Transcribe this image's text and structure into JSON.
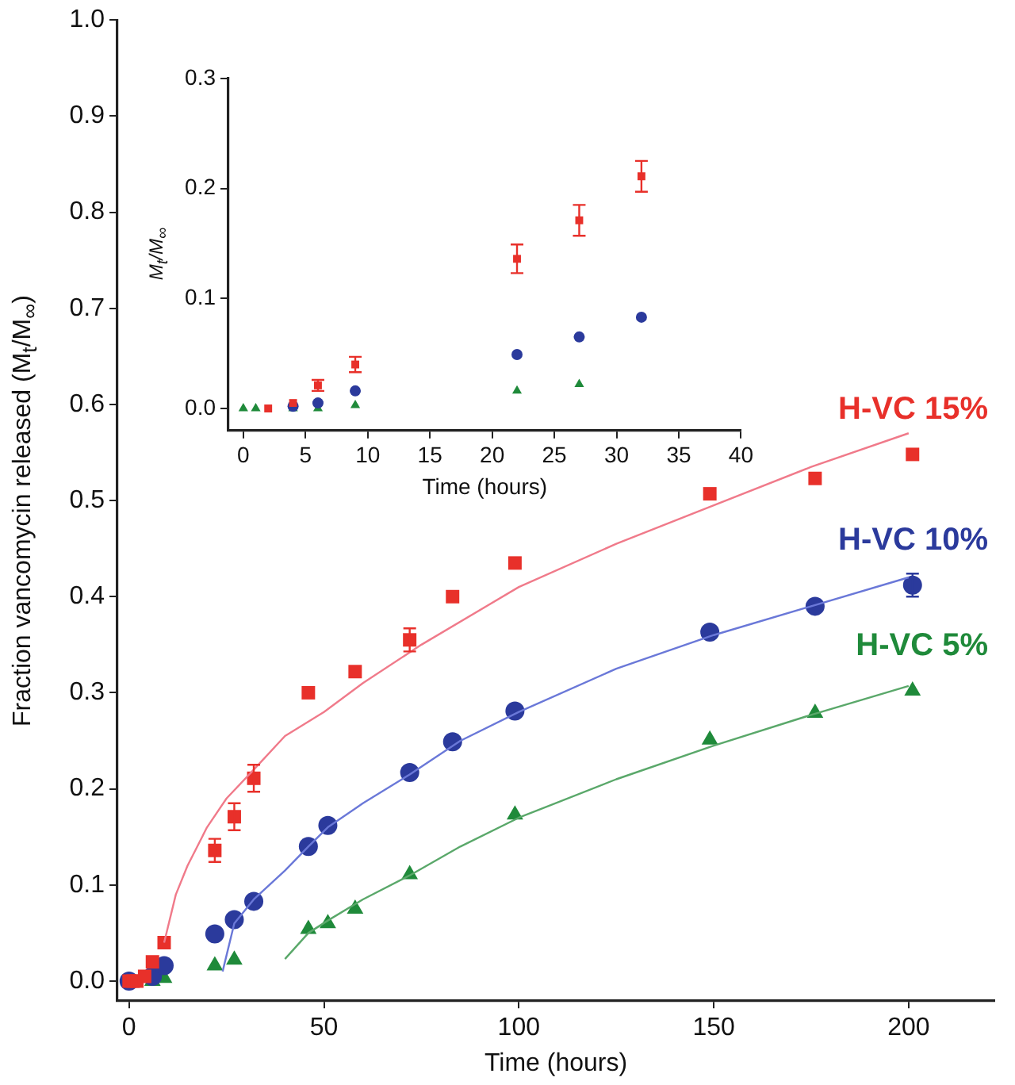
{
  "chart_data": [
    {
      "type": "scatter",
      "xlabel": "Time (hours)",
      "ylabel": "Fraction vancomycin released (M$_{t}$/M$_{∞}$)",
      "xlim": [
        -3,
        222
      ],
      "ylim": [
        -0.02,
        1.0
      ],
      "xticks": [
        0,
        50,
        100,
        150,
        200
      ],
      "yticks": [
        {
          "value": 0,
          "label": "0.0"
        },
        {
          "value": 0.1,
          "label": "0.1"
        },
        {
          "value": 0.2,
          "label": "0.2"
        },
        {
          "value": 0.3,
          "label": "0.3"
        },
        {
          "value": 0.4,
          "label": "0.4"
        },
        {
          "value": 0.5,
          "label": "0.5"
        },
        {
          "value": 0.6,
          "label": "0.6"
        },
        {
          "value": 0.7,
          "label": "0.7"
        },
        {
          "value": 0.8,
          "label": "0.8"
        },
        {
          "value": 0.9,
          "label": "0.9"
        },
        {
          "value": 1,
          "label": "1.0"
        }
      ],
      "grid": false,
      "legend": false,
      "series": [
        {
          "type": "line",
          "marker": "none",
          "color": "#f07a8a",
          "x": [
            9,
            12,
            15,
            20,
            25,
            32,
            40,
            50,
            60,
            75,
            100,
            125,
            150,
            175,
            200
          ],
          "values": [
            0.04,
            0.09,
            0.12,
            0.16,
            0.19,
            0.22,
            0.255,
            0.28,
            0.31,
            0.35,
            0.41,
            0.455,
            0.495,
            0.535,
            0.57
          ]
        },
        {
          "type": "line",
          "marker": "none",
          "color": "#6a78d8",
          "x": [
            24,
            27,
            32,
            40,
            46,
            51,
            60,
            72,
            85,
            100,
            125,
            150,
            175,
            200
          ],
          "values": [
            0.01,
            0.06,
            0.085,
            0.115,
            0.14,
            0.16,
            0.185,
            0.215,
            0.25,
            0.28,
            0.325,
            0.36,
            0.39,
            0.42
          ]
        },
        {
          "type": "line",
          "marker": "none",
          "color": "#5aa86a",
          "x": [
            40,
            46,
            51,
            60,
            72,
            85,
            100,
            125,
            150,
            175,
            200
          ],
          "values": [
            0.023,
            0.05,
            0.063,
            0.085,
            0.11,
            0.14,
            0.17,
            0.21,
            0.245,
            0.277,
            0.307
          ]
        },
        {
          "name": "H-VC 15%",
          "type": "scatter",
          "marker": "square",
          "color": "#e8302a",
          "x": [
            0,
            1,
            2,
            4,
            6,
            9,
            22,
            27,
            32,
            46,
            58,
            72,
            83,
            99,
            149,
            176,
            201
          ],
          "values": [
            0,
            0,
            0,
            0.005,
            0.02,
            0.04,
            0.136,
            0.171,
            0.211,
            0.3,
            0.322,
            0.355,
            0.4,
            0.435,
            0.507,
            0.523,
            0.548
          ],
          "errors": [
            null,
            null,
            null,
            null,
            null,
            null,
            0.012,
            0.014,
            0.014,
            null,
            null,
            0.012,
            null,
            null,
            null,
            null,
            null
          ]
        },
        {
          "name": "H-VC 10%",
          "type": "scatter",
          "marker": "circle",
          "color": "#2b3a9c",
          "x": [
            0,
            4,
            6,
            9,
            22,
            27,
            32,
            46,
            51,
            72,
            83,
            99,
            149,
            176,
            201
          ],
          "values": [
            0,
            null,
            0.005,
            0.016,
            0.049,
            0.064,
            0.083,
            0.14,
            0.162,
            0.217,
            0.249,
            0.281,
            0.363,
            0.39,
            0.412
          ],
          "errors": [
            null,
            null,
            null,
            null,
            null,
            null,
            null,
            null,
            null,
            null,
            null,
            null,
            null,
            null,
            0.012
          ]
        },
        {
          "name": "H-VC 5%",
          "type": "scatter",
          "marker": "triangle",
          "color": "#1f8a3a",
          "x": [
            6,
            9,
            22,
            27,
            46,
            51,
            58,
            72,
            99,
            149,
            176,
            201
          ],
          "values": [
            0,
            0.003,
            0.016,
            0.022,
            0.054,
            0.06,
            0.075,
            0.111,
            0.173,
            0.251,
            0.279,
            0.302
          ]
        }
      ]
    },
    {
      "type": "scatter",
      "xlabel": "Time (hours)",
      "ylabel": "M$_{t}$/M$_{∞}$",
      "xlim": [
        -1.2,
        40
      ],
      "ylim": [
        -0.02,
        0.3
      ],
      "xticks": [
        0,
        5,
        10,
        15,
        20,
        25,
        30,
        35,
        40
      ],
      "yticks": [
        {
          "value": 0,
          "label": "0.0"
        },
        {
          "value": 0.1,
          "label": "0.1"
        },
        {
          "value": 0.2,
          "label": "0.2"
        },
        {
          "value": 0.3,
          "label": "0.3"
        }
      ],
      "grid": false,
      "legend": false,
      "series": [
        {
          "type": "scatter",
          "marker": "square",
          "color": "#e8302a",
          "x": [
            2,
            4,
            6,
            9,
            22,
            27,
            32
          ],
          "values": [
            0,
            0.005,
            0.021,
            0.04,
            0.136,
            0.171,
            0.211
          ],
          "errors": [
            null,
            null,
            0.005,
            0.007,
            0.013,
            0.014,
            0.014
          ]
        },
        {
          "type": "scatter",
          "marker": "circle",
          "color": "#2b3a9c",
          "x": [
            4,
            6,
            9,
            22,
            27,
            32
          ],
          "values": [
            0.002,
            0.005,
            0.016,
            0.049,
            0.065,
            0.083
          ]
        },
        {
          "type": "scatter",
          "marker": "triangle",
          "color": "#1f8a3a",
          "x": [
            0,
            1,
            4,
            6,
            9,
            22,
            27
          ],
          "values": [
            0,
            0,
            0,
            0,
            0.003,
            0.016,
            0.022
          ]
        }
      ]
    }
  ]
}
